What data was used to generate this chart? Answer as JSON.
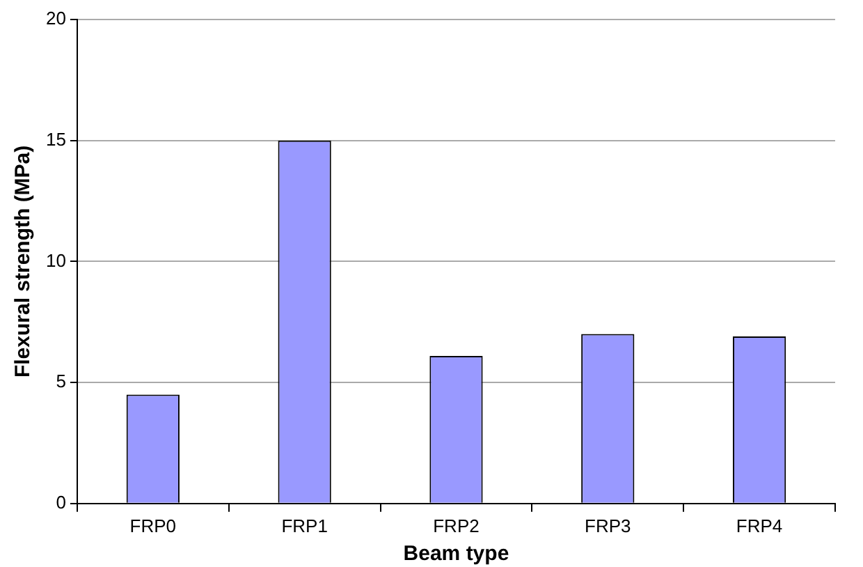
{
  "chart_data": {
    "type": "bar",
    "xlabel": "Beam type",
    "ylabel": "Flexural strength (MPa)",
    "categories": [
      "FRP0",
      "FRP1",
      "FRP2",
      "FRP3",
      "FRP4"
    ],
    "values": [
      4.5,
      15,
      6.1,
      7.0,
      6.9
    ],
    "color": "#9999ff",
    "ylim": [
      0,
      20
    ],
    "yticks": [
      0,
      5,
      10,
      15,
      20
    ],
    "grid": "y",
    "legend": false
  }
}
